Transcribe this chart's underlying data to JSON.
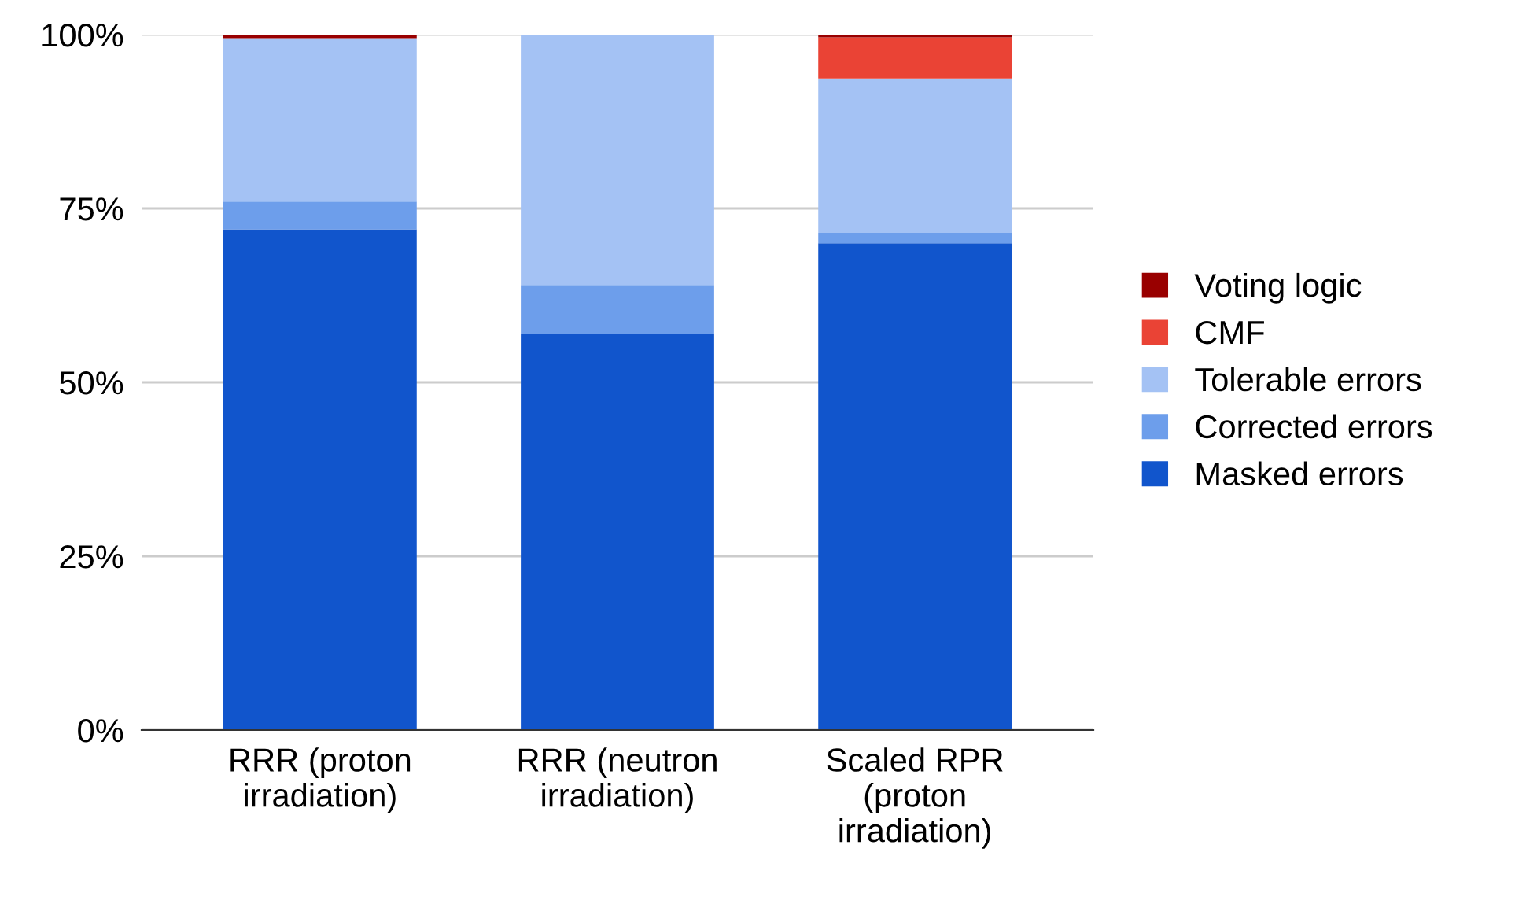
{
  "chart_data": {
    "type": "bar",
    "stacked": true,
    "categories": [
      "RRR (proton\nirradiation)",
      "RRR (neutron\nirradiation)",
      "Scaled RPR\n(proton\nirradiation)"
    ],
    "series": [
      {
        "name": "Masked errors",
        "color": "#1155cc",
        "values": [
          72,
          57,
          70
        ]
      },
      {
        "name": "Corrected errors",
        "color": "#6d9eeb",
        "values": [
          4,
          7,
          1.5
        ]
      },
      {
        "name": "Tolerable errors",
        "color": "#a4c2f4",
        "values": [
          23.5,
          36,
          22.2
        ]
      },
      {
        "name": "CMF",
        "color": "#ea4335",
        "values": [
          0,
          0,
          5.9
        ]
      },
      {
        "name": "Voting logic",
        "color": "#990000",
        "values": [
          0.5,
          0,
          0.4
        ]
      }
    ],
    "ylim": [
      0,
      100
    ],
    "yticks": [
      {
        "value": 0,
        "label": "0%"
      },
      {
        "value": 25,
        "label": "25%"
      },
      {
        "value": 50,
        "label": "50%"
      },
      {
        "value": 75,
        "label": "75%"
      },
      {
        "value": 100,
        "label": "100%"
      }
    ],
    "grid": "y",
    "legend": "right"
  }
}
